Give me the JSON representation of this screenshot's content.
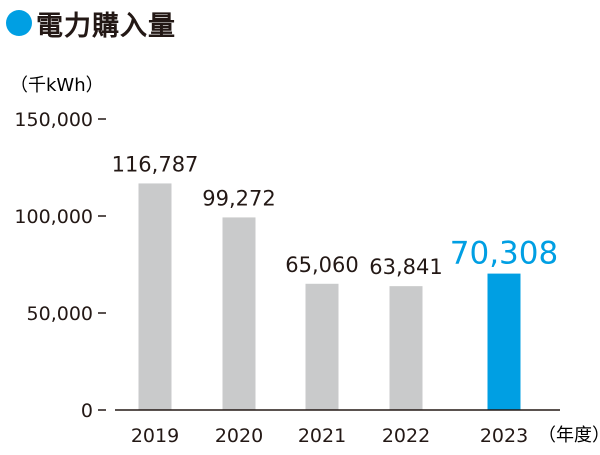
{
  "title": "電力購入量",
  "colors": {
    "accent": "#009fe3",
    "bar": "#c9cacb",
    "highlight": "#009fe3",
    "text": "#231815",
    "axis": "#231815"
  },
  "chart_data": {
    "type": "bar",
    "title": "電力購入量",
    "unit_label": "（千kWh）",
    "xlabel": "（年度）",
    "ylabel": "",
    "categories": [
      "2019",
      "2020",
      "2021",
      "2022",
      "2023"
    ],
    "values": [
      116787,
      99272,
      65060,
      63841,
      70308
    ],
    "value_labels": [
      "116,787",
      "99,272",
      "65,060",
      "63,841",
      "70,308"
    ],
    "highlight_index": 4,
    "ylim": [
      0,
      150000
    ],
    "yticks": [
      0,
      50000,
      100000,
      150000
    ],
    "ytick_labels": [
      "0",
      "50,000",
      "100,000",
      "150,000"
    ],
    "grid": false,
    "legend": "none"
  }
}
